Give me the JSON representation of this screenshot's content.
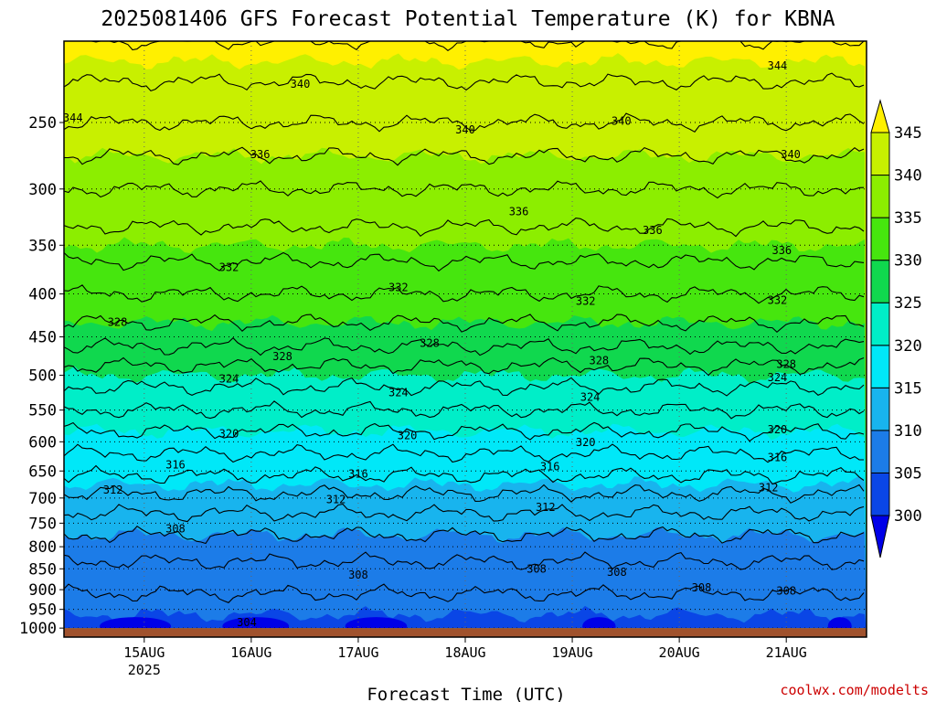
{
  "chart_data": {
    "type": "heatmap",
    "title": "2025081406 GFS Forecast Potential Temperature (K) for KBNA",
    "xlabel": "Forecast Time (UTC)",
    "ylabel": "",
    "credit": "coolwx.com/modelts",
    "x_ticks": [
      {
        "label": "15AUG",
        "sublabel": "2025",
        "hour": 18
      },
      {
        "label": "16AUG",
        "sublabel": "",
        "hour": 42
      },
      {
        "label": "17AUG",
        "sublabel": "",
        "hour": 66
      },
      {
        "label": "18AUG",
        "sublabel": "",
        "hour": 90
      },
      {
        "label": "19AUG",
        "sublabel": "",
        "hour": 114
      },
      {
        "label": "20AUG",
        "sublabel": "",
        "hour": 138
      },
      {
        "label": "21AUG",
        "sublabel": "",
        "hour": 162
      }
    ],
    "x_range_hours": [
      0,
      180
    ],
    "y_axis": "pressure (hPa), log scale",
    "y_ticks": [
      250,
      300,
      350,
      400,
      450,
      500,
      550,
      600,
      650,
      700,
      750,
      800,
      850,
      900,
      950,
      1000
    ],
    "y_range": [
      200,
      1025
    ],
    "surface_level": 1000,
    "colorbar": {
      "levels": [
        300,
        305,
        310,
        315,
        320,
        325,
        330,
        335,
        340,
        345
      ],
      "colors": [
        "#0000e8",
        "#0a46e6",
        "#1c7ce8",
        "#18b4ee",
        "#00e8f8",
        "#00eec8",
        "#10d84e",
        "#46e60e",
        "#8cee00",
        "#c8f000",
        "#fff000"
      ]
    },
    "profile": [
      {
        "p": 200,
        "theta": 346
      },
      {
        "p": 250,
        "theta": 342
      },
      {
        "p": 300,
        "theta": 338
      },
      {
        "p": 350,
        "theta": 335
      },
      {
        "p": 400,
        "theta": 332
      },
      {
        "p": 450,
        "theta": 329
      },
      {
        "p": 500,
        "theta": 325
      },
      {
        "p": 550,
        "theta": 322
      },
      {
        "p": 600,
        "theta": 319
      },
      {
        "p": 650,
        "theta": 316.5
      },
      {
        "p": 700,
        "theta": 313.5
      },
      {
        "p": 750,
        "theta": 311
      },
      {
        "p": 800,
        "theta": 309
      },
      {
        "p": 850,
        "theta": 307.5
      },
      {
        "p": 900,
        "theta": 306.2
      },
      {
        "p": 950,
        "theta": 305.2
      },
      {
        "p": 1000,
        "theta": 304.5
      }
    ],
    "contour_interval": 2,
    "contour_labels": [
      {
        "value": "344",
        "hour": 2,
        "p": 247
      },
      {
        "value": "340",
        "hour": 53,
        "p": 225
      },
      {
        "value": "340",
        "hour": 90,
        "p": 255
      },
      {
        "value": "340",
        "hour": 125,
        "p": 249
      },
      {
        "value": "340",
        "hour": 163,
        "p": 273
      },
      {
        "value": "344",
        "hour": 160,
        "p": 214
      },
      {
        "value": "336",
        "hour": 44,
        "p": 273
      },
      {
        "value": "336",
        "hour": 102,
        "p": 319
      },
      {
        "value": "336",
        "hour": 132,
        "p": 336
      },
      {
        "value": "336",
        "hour": 161,
        "p": 355
      },
      {
        "value": "332",
        "hour": 37,
        "p": 372
      },
      {
        "value": "332",
        "hour": 75,
        "p": 393
      },
      {
        "value": "332",
        "hour": 117,
        "p": 408
      },
      {
        "value": "332",
        "hour": 160,
        "p": 407
      },
      {
        "value": "328",
        "hour": 12,
        "p": 432
      },
      {
        "value": "328",
        "hour": 49,
        "p": 475
      },
      {
        "value": "328",
        "hour": 82,
        "p": 458
      },
      {
        "value": "328",
        "hour": 120,
        "p": 480
      },
      {
        "value": "328",
        "hour": 162,
        "p": 485
      },
      {
        "value": "324",
        "hour": 37,
        "p": 505
      },
      {
        "value": "324",
        "hour": 75,
        "p": 524
      },
      {
        "value": "324",
        "hour": 118,
        "p": 531
      },
      {
        "value": "324",
        "hour": 160,
        "p": 503
      },
      {
        "value": "320",
        "hour": 37,
        "p": 587
      },
      {
        "value": "320",
        "hour": 77,
        "p": 590
      },
      {
        "value": "320",
        "hour": 117,
        "p": 601
      },
      {
        "value": "320",
        "hour": 160,
        "p": 580
      },
      {
        "value": "316",
        "hour": 25,
        "p": 639
      },
      {
        "value": "316",
        "hour": 66,
        "p": 655
      },
      {
        "value": "316",
        "hour": 109,
        "p": 642
      },
      {
        "value": "316",
        "hour": 160,
        "p": 626
      },
      {
        "value": "312",
        "hour": 11,
        "p": 685
      },
      {
        "value": "312",
        "hour": 61,
        "p": 703
      },
      {
        "value": "312",
        "hour": 108,
        "p": 718
      },
      {
        "value": "312",
        "hour": 158,
        "p": 680
      },
      {
        "value": "308",
        "hour": 25,
        "p": 762
      },
      {
        "value": "308",
        "hour": 66,
        "p": 864
      },
      {
        "value": "308",
        "hour": 106,
        "p": 850
      },
      {
        "value": "308",
        "hour": 124,
        "p": 858
      },
      {
        "value": "308",
        "hour": 143,
        "p": 895
      },
      {
        "value": "308",
        "hour": 162,
        "p": 903
      },
      {
        "value": "304",
        "hour": 41,
        "p": 985
      }
    ]
  }
}
